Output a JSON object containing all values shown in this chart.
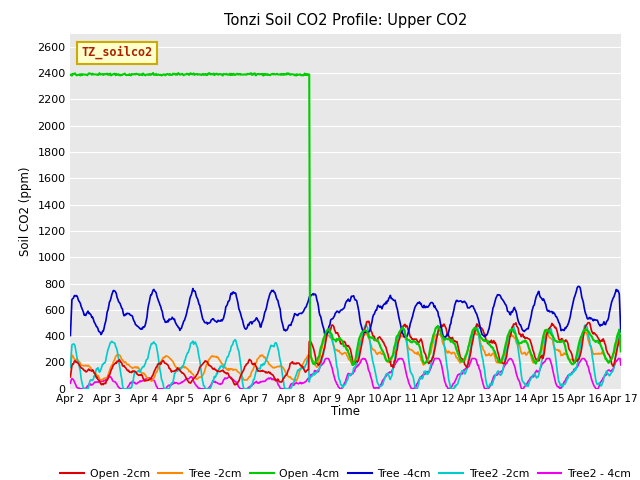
{
  "title": "Tonzi Soil CO2 Profile: Upper CO2",
  "ylabel": "Soil CO2 (ppm)",
  "xlabel": "Time",
  "watermark": "TZ_soilco2",
  "ylim": [
    0,
    2700
  ],
  "yticks": [
    0,
    200,
    400,
    600,
    800,
    1000,
    1200,
    1400,
    1600,
    1800,
    2000,
    2200,
    2400,
    2600
  ],
  "x_labels": [
    "Apr 2",
    "Apr 3",
    "Apr 4",
    "Apr 5",
    "Apr 6",
    "Apr 7",
    "Apr 8",
    "Apr 9",
    "Apr 10",
    "Apr 11",
    "Apr 12",
    "Apr 13",
    "Apr 14",
    "Apr 15",
    "Apr 16",
    "Apr 17"
  ],
  "series": {
    "Open -2cm": {
      "color": "#dd0000",
      "lw": 1.2
    },
    "Tree -2cm": {
      "color": "#ff8800",
      "lw": 1.2
    },
    "Open -4cm": {
      "color": "#00cc00",
      "lw": 1.5
    },
    "Tree -4cm": {
      "color": "#0000cc",
      "lw": 1.2
    },
    "Tree2 -2cm": {
      "color": "#00cccc",
      "lw": 1.2
    },
    "Tree2 - 4cm": {
      "color": "#ee00ee",
      "lw": 1.2
    }
  },
  "plot_bg": "#e8e8e8",
  "fig_bg": "#ffffff",
  "grid_color": "#ffffff",
  "drop_day": 6.5,
  "n_days": 15,
  "pts_per_day": 48
}
